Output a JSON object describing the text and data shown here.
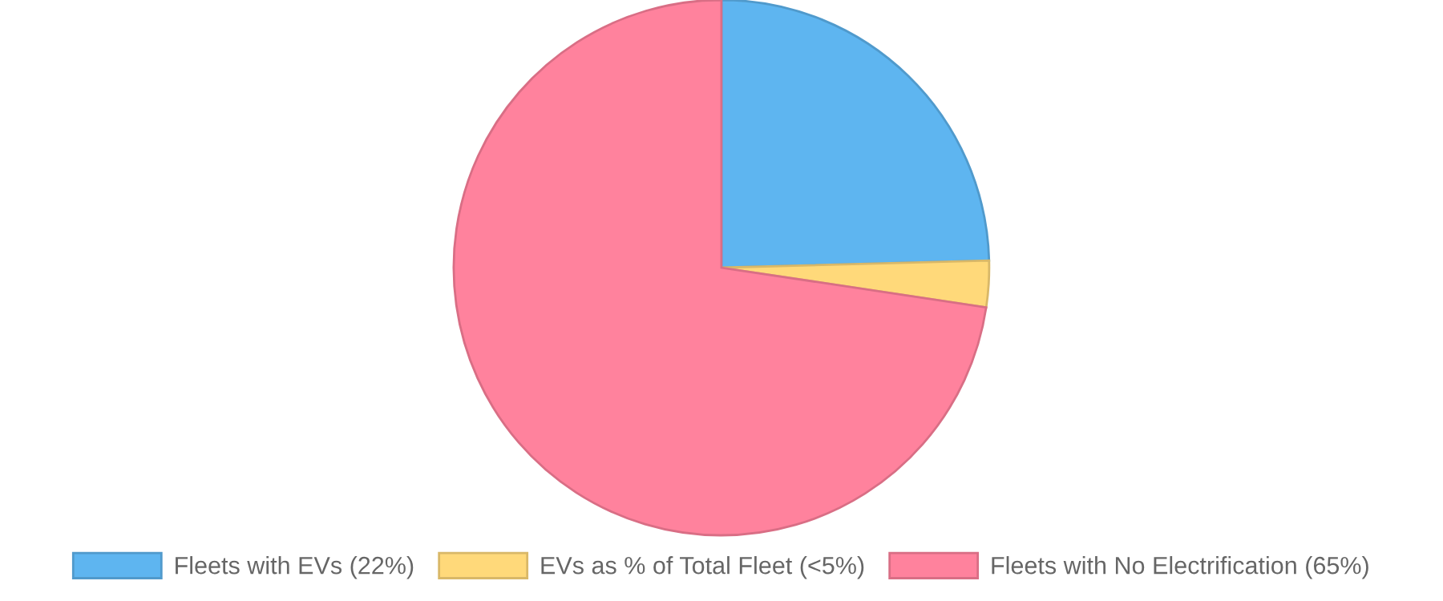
{
  "chart_data": {
    "type": "pie",
    "categories": [
      "Fleets with EVs (22%)",
      "EVs as % of Total Fleet (<5%)",
      "Fleets with No Electrification (65%)"
    ],
    "values": [
      22,
      2.5,
      65
    ],
    "colors": [
      "#5eb5f0",
      "#ffd97a",
      "#ff829d"
    ],
    "legend": "bottom"
  }
}
